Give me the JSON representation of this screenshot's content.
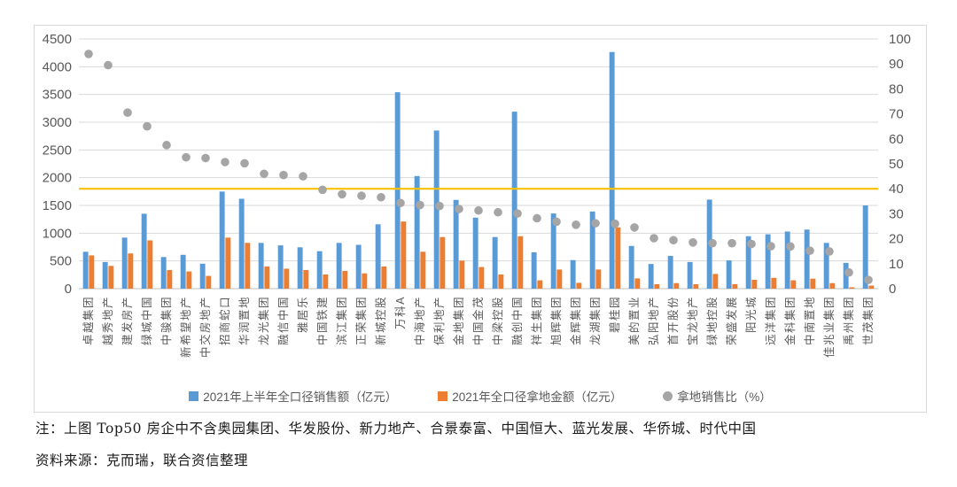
{
  "chart_data": {
    "type": "bar",
    "subtype": "grouped-bar-with-scatter-overlay",
    "title": "",
    "categories": [
      "卓越集团",
      "越秀地产",
      "建发房产",
      "绿城中国",
      "中骏集团",
      "新希望地产",
      "中交房地产",
      "招商蛇口",
      "华润置地",
      "龙光集团",
      "融信中国",
      "雅居乐",
      "中国铁建",
      "滨江集团",
      "正荣集团",
      "新城控股",
      "万科A",
      "中海地产",
      "保利地产",
      "金地集团",
      "中国金茂",
      "中梁控股",
      "融创中国",
      "祥生集团",
      "旭辉集团",
      "金辉集团",
      "龙湖集团",
      "碧桂园",
      "美的置业",
      "弘阳地产",
      "首开股份",
      "宝龙地产",
      "绿地控股",
      "荣盛发展",
      "阳光城",
      "远洋集团",
      "金科集团",
      "中南置地",
      "佳兆业集团",
      "禹州集团",
      "世茂集团"
    ],
    "series": [
      {
        "name": "2021年上半年全口径销售额（亿元）",
        "type": "bar",
        "axis": "left",
        "color": "#5B9BD5",
        "values": [
          665,
          480,
          920,
          1350,
          570,
          610,
          450,
          1750,
          1620,
          825,
          780,
          745,
          675,
          825,
          790,
          1160,
          3540,
          2030,
          2850,
          1600,
          1280,
          930,
          3190,
          655,
          1355,
          515,
          1390,
          4265,
          770,
          445,
          590,
          480,
          1605,
          510,
          945,
          980,
          1030,
          1065,
          825,
          465,
          1500
        ]
      },
      {
        "name": "2021年全口径拿地金额（亿元）",
        "type": "bar",
        "axis": "left",
        "color": "#ED7D31",
        "values": [
          600,
          410,
          635,
          870,
          335,
          310,
          230,
          920,
          825,
          400,
          360,
          335,
          255,
          320,
          275,
          400,
          1210,
          665,
          930,
          505,
          390,
          255,
          945,
          150,
          345,
          105,
          345,
          1105,
          185,
          80,
          100,
          80,
          265,
          80,
          160,
          195,
          150,
          180,
          100,
          25,
          55
        ]
      },
      {
        "name": "拿地销售比（%）",
        "type": "scatter",
        "axis": "right",
        "color": "#A5A5A5",
        "values": [
          94,
          89.5,
          70.5,
          65,
          57.5,
          52.6,
          52.3,
          50.7,
          50.2,
          46,
          45.5,
          45,
          39.6,
          37.8,
          37.2,
          36.6,
          34.3,
          33.5,
          33.1,
          31.9,
          31.3,
          30.6,
          30.1,
          28.2,
          26.8,
          25.6,
          26.2,
          26,
          24.5,
          20.2,
          19.4,
          18.5,
          18.2,
          18.2,
          17.9,
          17,
          16.9,
          15.2,
          14.9,
          6.5,
          3.5
        ]
      }
    ],
    "left_axis": {
      "min": 0,
      "max": 4500,
      "step": 500,
      "ticks": [
        "0",
        "500",
        "1000",
        "1500",
        "2000",
        "2500",
        "3000",
        "3500",
        "4000",
        "4500"
      ]
    },
    "right_axis": {
      "min": 0,
      "max": 100,
      "step": 10,
      "ticks": [
        "0",
        "10",
        "20",
        "30",
        "40",
        "50",
        "60",
        "70",
        "80",
        "90",
        "100"
      ]
    },
    "reference_line": {
      "axis": "right",
      "value": 40,
      "color": "#FFC000"
    },
    "grid": true,
    "gridline_color": "#D9D9D9",
    "axis_label_color": "#595959",
    "legend_position": "bottom"
  },
  "legend": {
    "items": [
      {
        "label": "2021年上半年全口径销售额（亿元）",
        "marker": "square",
        "color": "#5B9BD5"
      },
      {
        "label": "2021年全口径拿地金额（亿元）",
        "marker": "square",
        "color": "#ED7D31"
      },
      {
        "label": "拿地销售比（%）",
        "marker": "circle",
        "color": "#A5A5A5"
      }
    ]
  },
  "notes": {
    "line1": "注：上图 Top50 房企中不含奥园集团、华发股份、新力地产、合景泰富、中国恒大、蓝光发展、华侨城、时代中国",
    "line2": "资料来源：克而瑞，联合资信整理"
  }
}
